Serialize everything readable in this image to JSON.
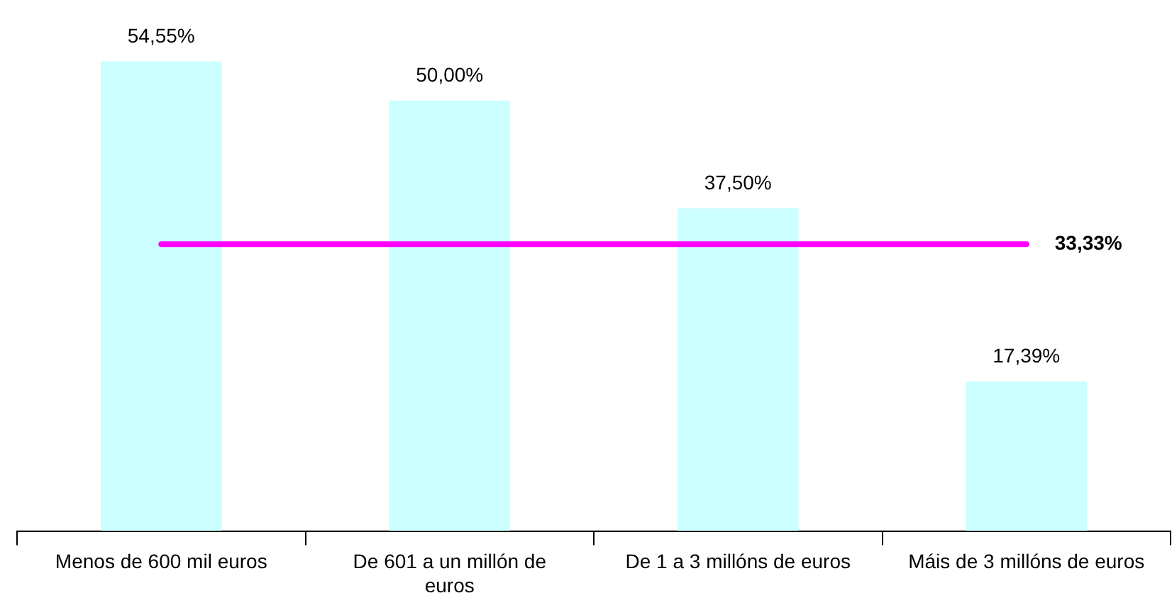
{
  "chart_data": {
    "type": "bar",
    "categories": [
      "Menos de 600 mil euros",
      "De 601 a un millón de euros",
      "De 1 a 3 millóns de euros",
      "Máis de 3 millóns de euros"
    ],
    "values": [
      54.55,
      50.0,
      37.5,
      17.39
    ],
    "color": "#ccffff",
    "value_labels": [
      "54,55%",
      "50,00%",
      "37,50%",
      "17,39%"
    ],
    "ref_lines": [
      {
        "axis": "y",
        "value": 33.33,
        "label": "33,33%",
        "color": "#ff00ff"
      }
    ],
    "grid": false,
    "legend": false
  }
}
